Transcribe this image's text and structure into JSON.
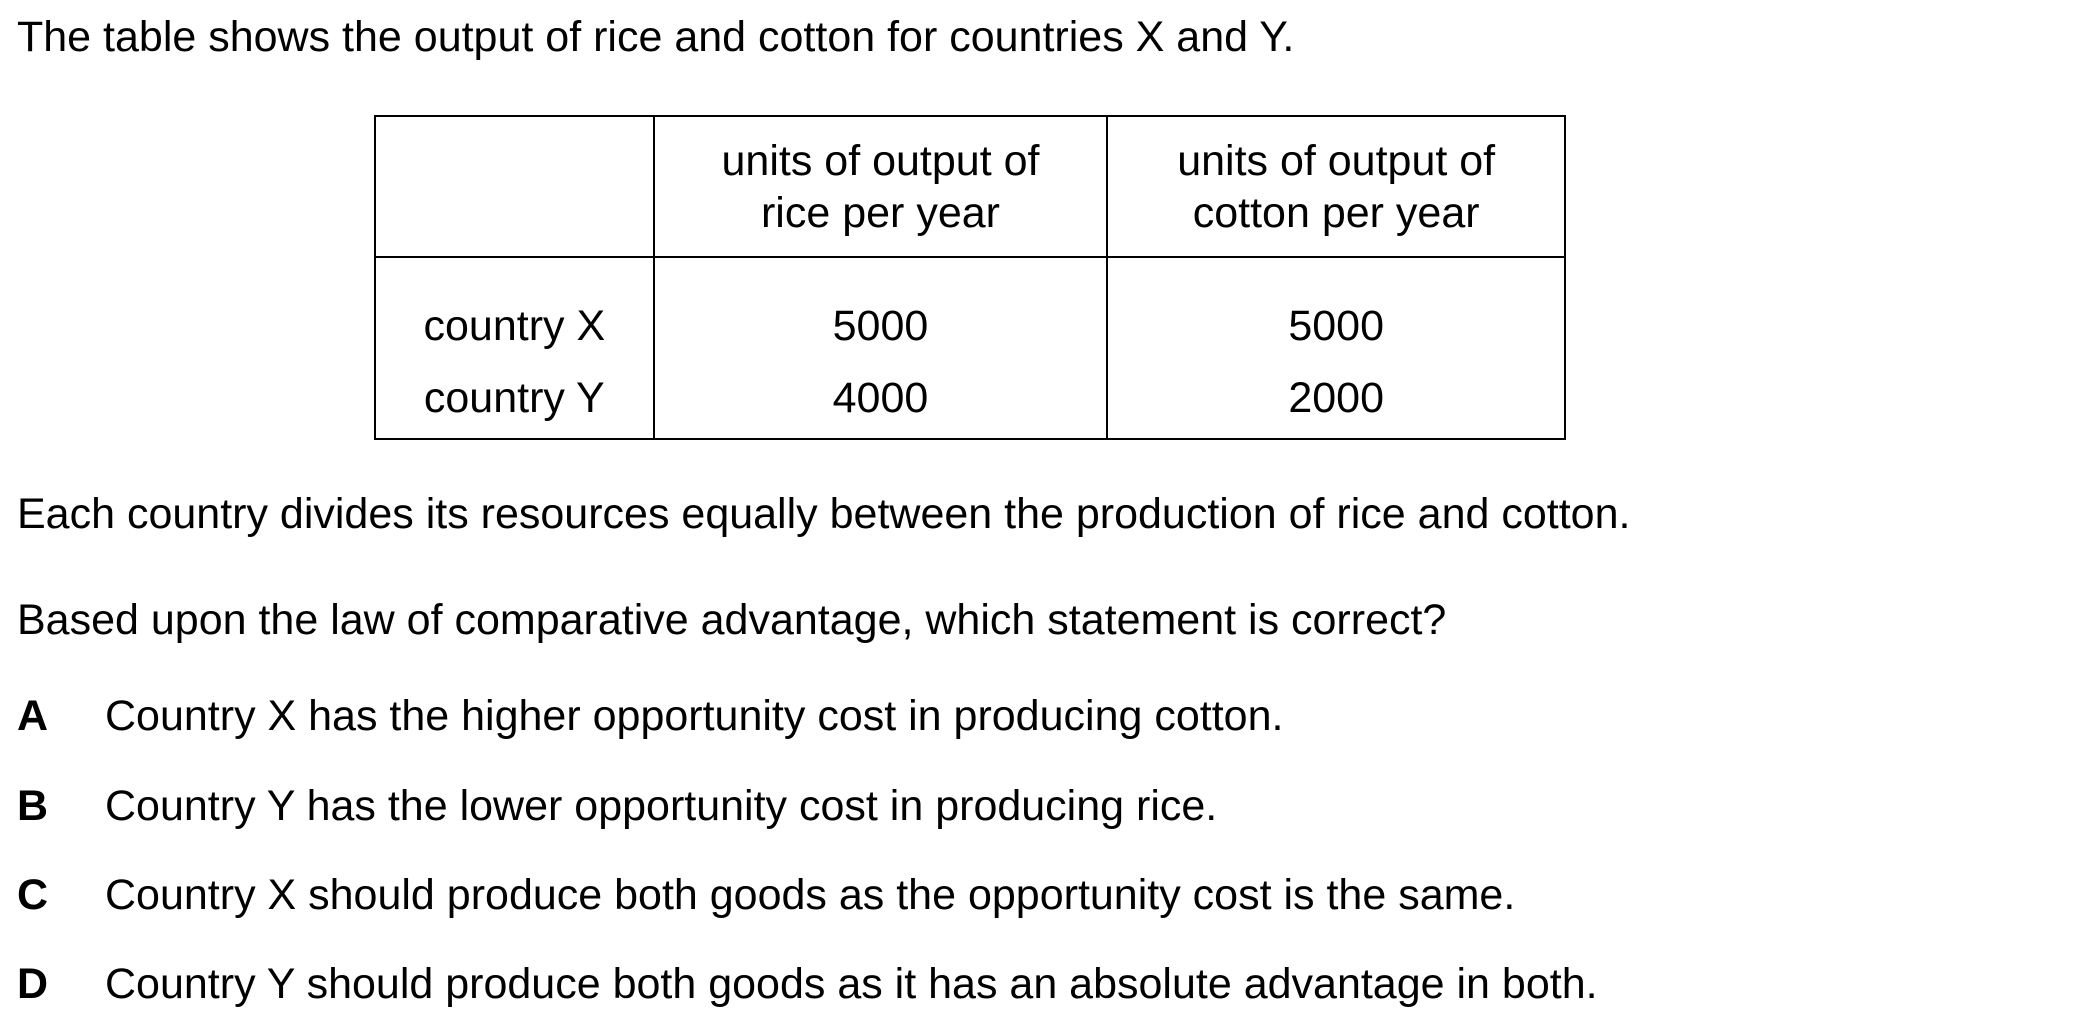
{
  "intro": "The table shows the output of rice and cotton for countries X and Y.",
  "table": {
    "headers": [
      "",
      "units of output of rice per year",
      "units of output of cotton per year"
    ],
    "header_lines": {
      "rice": [
        "units of output of",
        "rice per year"
      ],
      "cotton": [
        "units of output of",
        "cotton per year"
      ]
    },
    "rows": [
      {
        "label": "country X",
        "rice": "5000",
        "cotton": "5000"
      },
      {
        "label": "country Y",
        "rice": "4000",
        "cotton": "2000"
      }
    ]
  },
  "statement": "Each country divides its resources equally between the production of rice and cotton.",
  "question": "Based upon the law of comparative advantage, which statement is correct?",
  "options": [
    {
      "letter": "A",
      "text": "Country X has the higher opportunity cost in producing cotton."
    },
    {
      "letter": "B",
      "text": "Country Y has the lower opportunity cost in producing rice."
    },
    {
      "letter": "C",
      "text": "Country X should produce both goods as the opportunity cost is the same."
    },
    {
      "letter": "D",
      "text": "Country Y should produce both goods as it has an absolute advantage in both."
    }
  ]
}
